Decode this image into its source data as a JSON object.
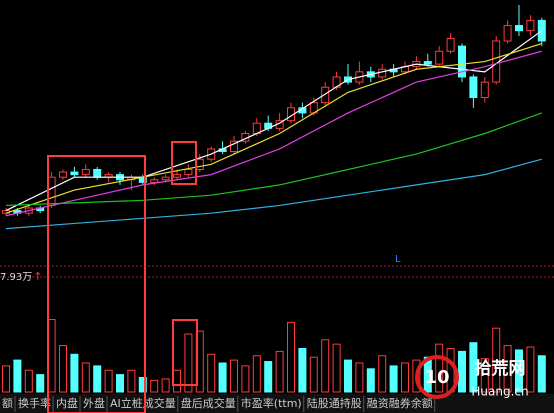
{
  "chart_data": {
    "type": "candlestick",
    "categories": [
      null,
      null,
      null,
      null,
      null,
      null,
      null,
      null,
      null,
      null,
      null,
      null,
      null,
      null,
      null,
      null,
      null,
      null,
      null,
      null,
      null,
      null,
      null,
      null,
      null,
      null,
      null,
      null,
      null,
      null,
      null,
      null,
      null,
      null,
      null,
      null,
      null,
      null,
      null,
      null,
      null,
      null,
      null,
      null,
      null,
      null,
      null,
      null
    ],
    "open": [
      19,
      20,
      19,
      21,
      22,
      33,
      35,
      34,
      36,
      33,
      34,
      32,
      33,
      31,
      32,
      33,
      34,
      36,
      40,
      44,
      43,
      47,
      50,
      54,
      52,
      55,
      60,
      58,
      62,
      68,
      72,
      70,
      74,
      72,
      75,
      74,
      76,
      78,
      77,
      82,
      84,
      72,
      64,
      70,
      86,
      92,
      90,
      94
    ],
    "high": [
      21,
      21,
      22,
      22,
      35,
      36,
      37,
      38,
      37,
      35,
      35,
      34,
      34,
      33,
      34,
      36,
      38,
      42,
      45,
      47,
      49,
      51,
      56,
      57,
      58,
      62,
      62,
      64,
      70,
      74,
      77,
      78,
      76,
      77,
      77,
      78,
      80,
      81,
      84,
      89,
      85,
      73,
      72,
      88,
      94,
      100,
      96,
      95
    ],
    "low": [
      18,
      18,
      18,
      19,
      21,
      32,
      33,
      33,
      32,
      31,
      30,
      28,
      30,
      30,
      31,
      32,
      33,
      35,
      39,
      42,
      42,
      46,
      49,
      51,
      51,
      54,
      56,
      57,
      61,
      67,
      69,
      69,
      70,
      71,
      72,
      73,
      75,
      76,
      76,
      81,
      70,
      60,
      62,
      69,
      85,
      88,
      88,
      84
    ],
    "close": [
      20,
      19,
      21,
      20,
      33,
      35,
      34,
      36,
      33,
      34,
      32,
      33,
      31,
      32,
      33,
      34,
      36,
      40,
      44,
      43,
      47,
      50,
      54,
      52,
      55,
      60,
      58,
      62,
      68,
      72,
      70,
      74,
      72,
      75,
      74,
      76,
      78,
      77,
      82,
      87,
      72,
      64,
      70,
      86,
      92,
      90,
      94,
      86
    ],
    "up_color": "#ff3b3b",
    "down_color": "#54ffff",
    "ylim": [
      0,
      100
    ],
    "lines": [
      {
        "color": "#ffffff",
        "x": [
          0,
          6,
          12,
          18,
          24,
          30,
          36,
          42,
          47
        ],
        "values": [
          20,
          33,
          33,
          42,
          54,
          71,
          77,
          74,
          90
        ]
      },
      {
        "color": "#e8e030",
        "x": [
          0,
          6,
          12,
          18,
          24,
          30,
          36,
          42,
          47
        ],
        "values": [
          19,
          28,
          33,
          38,
          50,
          66,
          75,
          78,
          85
        ]
      },
      {
        "color": "#e040e0",
        "x": [
          0,
          6,
          12,
          18,
          24,
          30,
          36,
          42,
          47
        ],
        "values": [
          18,
          24,
          30,
          34,
          44,
          58,
          70,
          76,
          82
        ]
      },
      {
        "color": "#20c020",
        "x": [
          0,
          6,
          12,
          18,
          24,
          30,
          36,
          42,
          47
        ],
        "values": [
          22,
          23,
          24,
          26,
          30,
          36,
          42,
          50,
          58
        ]
      },
      {
        "color": "#30b0e0",
        "x": [
          0,
          6,
          12,
          18,
          24,
          30,
          36,
          42,
          47
        ],
        "values": [
          13,
          15,
          17,
          19,
          22,
          26,
          30,
          34,
          40
        ]
      }
    ],
    "marker_label": "L",
    "volume": {
      "values": [
        1.8,
        2.2,
        1.5,
        1.2,
        5.0,
        3.2,
        2.6,
        2.0,
        1.8,
        1.5,
        1.2,
        1.5,
        1.0,
        0.8,
        0.9,
        1.5,
        4.0,
        4.2,
        2.6,
        2.0,
        2.2,
        1.8,
        2.5,
        2.1,
        2.8,
        4.8,
        3.0,
        2.4,
        3.6,
        3.3,
        2.2,
        2.0,
        1.6,
        2.5,
        1.8,
        2.0,
        2.2,
        2.4,
        3.3,
        3.0,
        2.8,
        3.4,
        2.3,
        4.4,
        3.2,
        2.9,
        3.1,
        2.5
      ],
      "ylim": [
        0,
        7.93
      ],
      "yticks": [
        {
          "value": 7.93,
          "label": "7.93万"
        }
      ],
      "arrow": "↑"
    }
  },
  "tabs": [
    "额",
    "换手率",
    "内盘",
    "外盘",
    "AI立桩成交量",
    "盘后成交量",
    "市盈率(ttm)",
    "陆股通持股",
    "融资融券余额"
  ],
  "watermark": {
    "logo": "10",
    "title": "拾荒网",
    "domain": "Huang.cn"
  }
}
